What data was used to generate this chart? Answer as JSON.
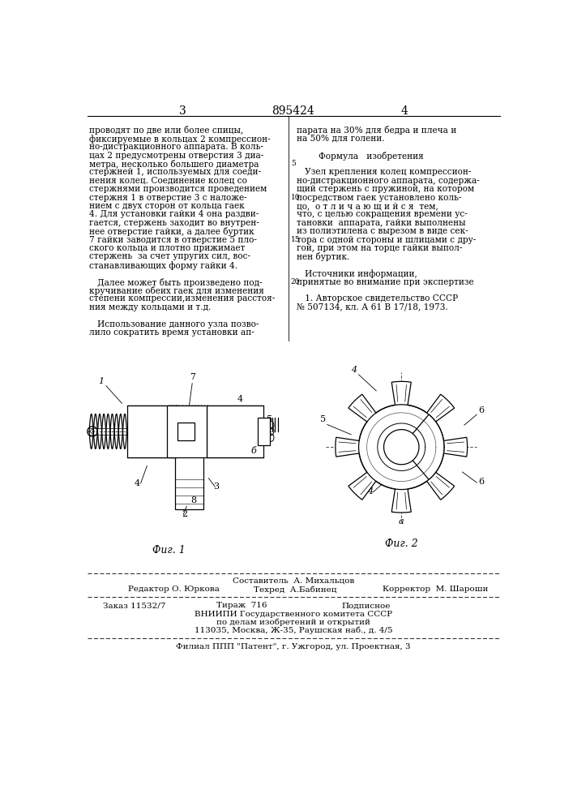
{
  "patent_number": "895424",
  "page_left": "3",
  "page_right": "4",
  "background_color": "#ffffff",
  "text_color": "#000000",
  "col1_text": [
    "проводят по две или более спицы,",
    "фиксируемые в кольцах 2 компрессион-",
    "но-дистракционного аппарата. В коль-",
    "цах 2 предусмотрены отверстия 3 диа-",
    "метра, несколько большего диаметра",
    "стержней 1, используемых для соеди-",
    "нения колец. Соединение колец со",
    "стержнями производится проведением",
    "стержня 1 в отверстие 3 с наложе-",
    "нием с двух сторон от кольца гаек",
    "4. Для установки гайки 4 она раздви-",
    "гается, стержень заходит во внутрен-",
    "нее отверстие гайки, а далее буртик",
    "7 гайки заводится в отверстие 5 пло-",
    "ского кольца и плотно прижимает",
    "стержень  за счет упругих сил, вос-",
    "станавливающих форму гайки 4.",
    "",
    "   Далее может быть произведено под-",
    "кручивание обеих гаек для изменения",
    "степени компрессии,изменения расстоя-",
    "ния между кольцами и т.д.",
    "",
    "   Использование данного узла позво-",
    "лило сократить время установки ап-"
  ],
  "col2_text": [
    "парата на 30% для бедра и плеча и",
    "на 50% для голени.",
    "",
    "        Формула   изобретения",
    "",
    "   Узел крепления колец компрессион-",
    "но-дистракционного аппарата, содержа-",
    "щий стержень с пружиной, на котором",
    "посредством гаек установлено коль-",
    "цо,  о т л и ч а ю щ и й с я  тем,",
    "что, с целью сокращения времени ус-",
    "тановки  аппарата, гайки выполнены",
    "из полиэтилена с вырезом в виде сек-",
    "тора с одной стороны и шлицами с дру-",
    "гой, при этом на торце гайки выпол-",
    "нен буртик.",
    "",
    "   Источники информации,",
    "принятые во внимание при экспертизе",
    "",
    "   1. Авторское свидетельство СССР",
    "№ 507134, кл. А 61 В 17/18, 1973."
  ],
  "bottom_line1": "Составитель  А. Михальцов",
  "bottom_line2_left": "Редактор О. Юркова",
  "bottom_line2_mid": "Техред  А.Бабинец",
  "bottom_line2_right": "Корректор  М. Шароши",
  "bottom_line3_left": "Заказ 11532/7",
  "bottom_line3_mid": "Тираж  716",
  "bottom_line3_right": "Подписное",
  "bottom_line4": "ВНИИПИ Государственного комитета СССР",
  "bottom_line5": "по делам изобретений и открытий",
  "bottom_line6": "113035, Москва, Ж-35, Раушская наб., д. 4/5",
  "bottom_filial": "Филиал ППП \"Патент\", г. Ужгород, ул. Проектная, 3",
  "fig1_label": "Фиг. 1",
  "fig2_label": "Фиг. 2"
}
